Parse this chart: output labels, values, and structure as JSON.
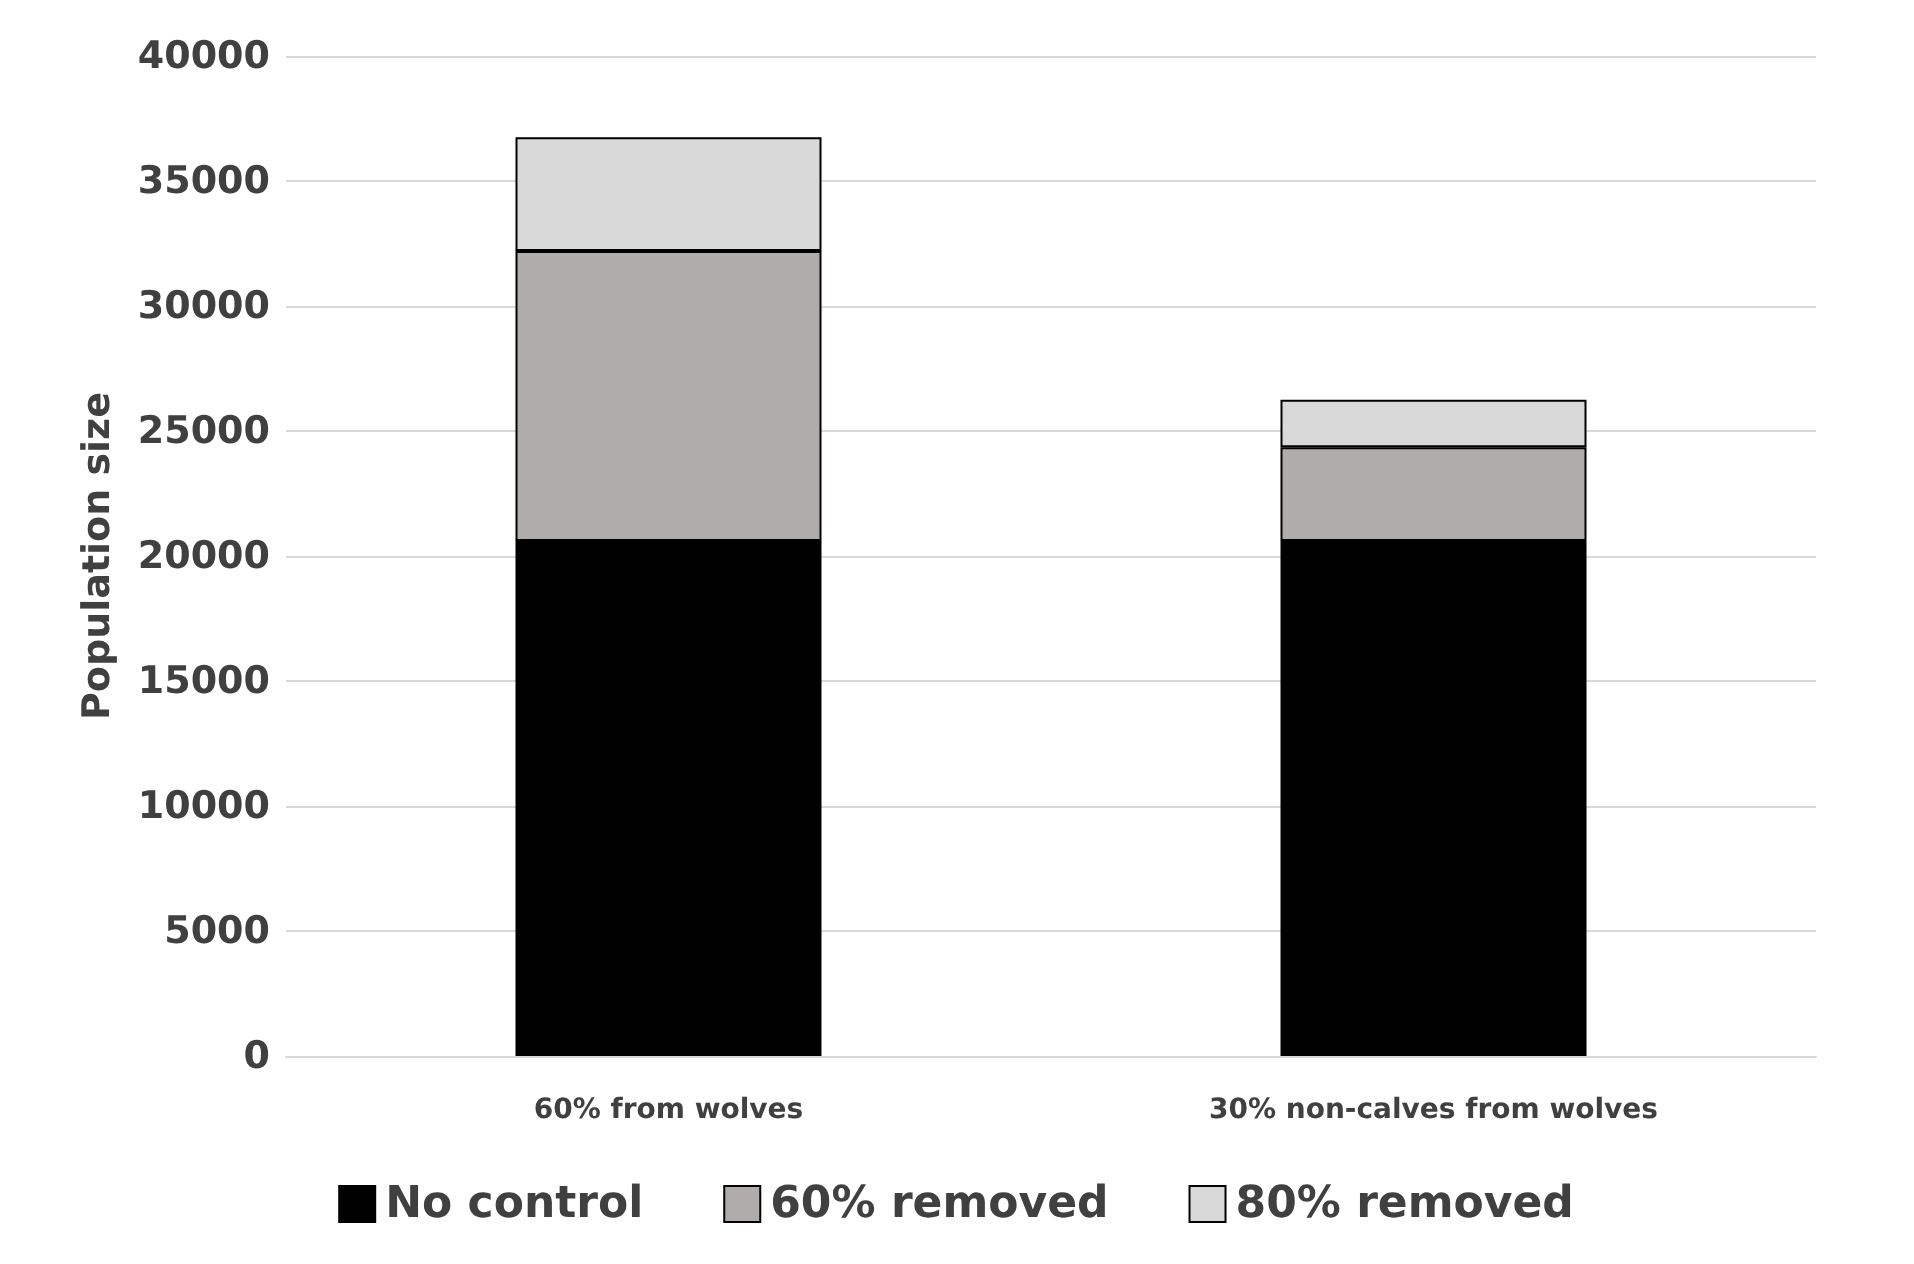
{
  "chart_data": {
    "type": "bar",
    "stacked": true,
    "ylabel": "Population size",
    "categories": [
      "60% from wolves",
      "30% non-calves from wolves"
    ],
    "series": [
      {
        "name": "No control",
        "color": "#000000",
        "values": [
          20600,
          20600
        ]
      },
      {
        "name": "60% removed",
        "color": "#b0acab",
        "values": [
          11600,
          3750
        ]
      },
      {
        "name": "80% removed",
        "color": "#d9d9d9",
        "values": [
          4550,
          1900
        ]
      }
    ],
    "ylim": [
      0,
      40000
    ],
    "yticks": [
      0,
      5000,
      10000,
      15000,
      20000,
      25000,
      30000,
      35000,
      40000
    ],
    "grid": "y",
    "legend": "bottom"
  }
}
